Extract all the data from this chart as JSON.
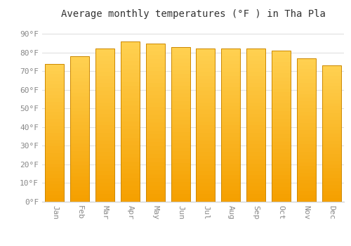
{
  "title": "Average monthly temperatures (°F ) in Tha Pla",
  "months": [
    "Jan",
    "Feb",
    "Mar",
    "Apr",
    "May",
    "Jun",
    "Jul",
    "Aug",
    "Sep",
    "Oct",
    "Nov",
    "Dec"
  ],
  "values": [
    74,
    78,
    82,
    86,
    85,
    83,
    82,
    82,
    82,
    81,
    77,
    73
  ],
  "bar_color_top": "#FDB827",
  "bar_color_bottom": "#F5A800",
  "bar_edge_color": "#CC8800",
  "background_color": "#FFFFFF",
  "yticks": [
    0,
    10,
    20,
    30,
    40,
    50,
    60,
    70,
    80,
    90
  ],
  "ylim": [
    0,
    95
  ],
  "title_fontsize": 10,
  "tick_fontsize": 8,
  "grid_color": "#E0E0E0",
  "tick_color": "#888888"
}
